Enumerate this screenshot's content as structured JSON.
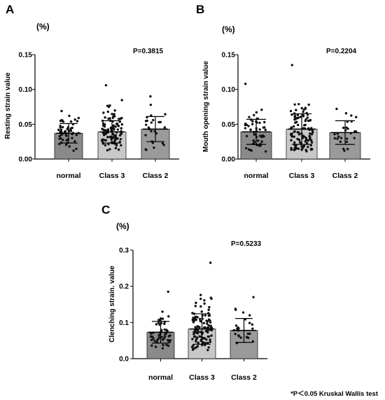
{
  "footnote": "*P＜0.05  Kruskal Wallis test",
  "colors": {
    "axis": "#000000",
    "dots": "#111111",
    "bar_normal": "#8a8a8a",
    "bar_class3": "#c8c8c8",
    "bar_class2": "#9a9a9a"
  },
  "chart_data": [
    {
      "type": "bar",
      "panel": "A",
      "unit": "(%)",
      "ylabel": "Resting strain value",
      "xlabel": "",
      "pvalue": "P=0.3815",
      "categories": [
        "normal",
        "Class 3",
        "Class 2"
      ],
      "values": [
        0.037,
        0.039,
        0.043
      ],
      "sd": [
        0.014,
        0.016,
        0.018
      ],
      "point_counts": [
        52,
        110,
        26
      ],
      "max_points": [
        0.069,
        0.106,
        0.09
      ],
      "ylim": [
        0,
        0.15
      ],
      "yticks": [
        "0.00",
        "0.05",
        "0.10",
        "0.15"
      ],
      "grid": false
    },
    {
      "type": "bar",
      "panel": "B",
      "unit": "(%)",
      "ylabel": "Mouth opening strain value",
      "xlabel": "",
      "pvalue": "P=0.2204",
      "categories": [
        "normal",
        "Class 3",
        "Class 2"
      ],
      "values": [
        0.039,
        0.043,
        0.038
      ],
      "sd": [
        0.018,
        0.022,
        0.017
      ],
      "point_counts": [
        52,
        110,
        26
      ],
      "max_points": [
        0.108,
        0.135,
        0.072
      ],
      "ylim": [
        0,
        0.15
      ],
      "yticks": [
        "0.00",
        "0.05",
        "0.10",
        "0.15"
      ],
      "grid": false
    },
    {
      "type": "bar",
      "panel": "C",
      "unit": "(%)",
      "ylabel": "Clenching strain. value",
      "xlabel": "",
      "pvalue": "P=0.5233",
      "categories": [
        "normal",
        "Class 3",
        "Class 2"
      ],
      "values": [
        0.073,
        0.082,
        0.078
      ],
      "sd": [
        0.03,
        0.042,
        0.033
      ],
      "point_counts": [
        52,
        110,
        26
      ],
      "max_points": [
        0.185,
        0.265,
        0.17
      ],
      "ylim": [
        0,
        0.3
      ],
      "yticks": [
        "0.0",
        "0.1",
        "0.2",
        "0.3"
      ],
      "grid": false
    }
  ]
}
